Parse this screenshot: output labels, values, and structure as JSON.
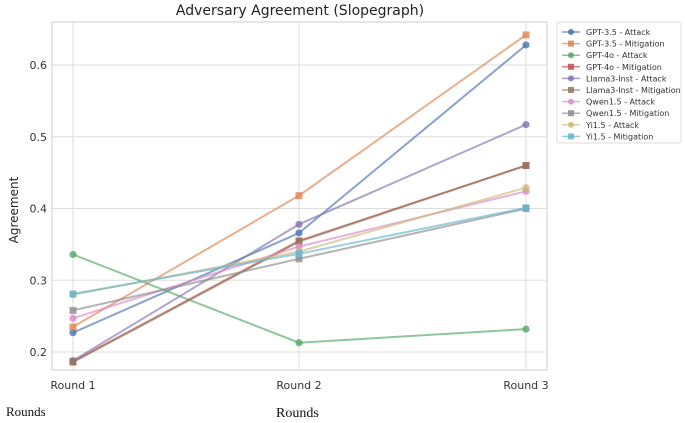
{
  "chart_data": {
    "type": "line",
    "title": "Adversary Agreement (Slopegraph)",
    "xlabel": "",
    "ylabel": "Agreement",
    "categories": [
      "Round 1",
      "Round 2",
      "Round 3"
    ],
    "yticks": [
      "0.2",
      "0.3",
      "0.4",
      "0.5",
      "0.6"
    ],
    "ylim": [
      0.175,
      0.66
    ],
    "grid": true,
    "legend_position": "top-right",
    "series": [
      {
        "name": "GPT-3.5 - Attack",
        "values": [
          0.227,
          0.366,
          0.628
        ],
        "color": "#4c72b0",
        "marker": "circle"
      },
      {
        "name": "GPT-3.5 - Mitigation",
        "values": [
          0.235,
          0.418,
          0.642
        ],
        "color": "#dd8452",
        "marker": "square"
      },
      {
        "name": "GPT-4o - Attack",
        "values": [
          0.336,
          0.213,
          0.232
        ],
        "color": "#55a868",
        "marker": "circle"
      },
      {
        "name": "GPT-4o - Mitigation",
        "values": [
          0.187,
          0.355,
          0.46
        ],
        "color": "#c44e52",
        "marker": "square"
      },
      {
        "name": "Llama3-Inst - Attack",
        "values": [
          0.188,
          0.378,
          0.517
        ],
        "color": "#8172b3",
        "marker": "circle"
      },
      {
        "name": "Llama3-Inst - Mitigation",
        "values": [
          0.186,
          0.354,
          0.46
        ],
        "color": "#937860",
        "marker": "square"
      },
      {
        "name": "Qwen1.5 - Attack",
        "values": [
          0.247,
          0.347,
          0.424
        ],
        "color": "#da8bc3",
        "marker": "circle"
      },
      {
        "name": "Qwen1.5 - Mitigation",
        "values": [
          0.258,
          0.33,
          0.4
        ],
        "color": "#8c8c8c",
        "marker": "square"
      },
      {
        "name": "Yi1.5 - Attack",
        "values": [
          0.28,
          0.34,
          0.429
        ],
        "color": "#ccb974",
        "marker": "circle"
      },
      {
        "name": "Yi1.5 - Mitigation",
        "values": [
          0.281,
          0.337,
          0.401
        ],
        "color": "#64b5cd",
        "marker": "square"
      }
    ]
  },
  "captions": {
    "left": "Rounds",
    "center": "Rounds"
  }
}
